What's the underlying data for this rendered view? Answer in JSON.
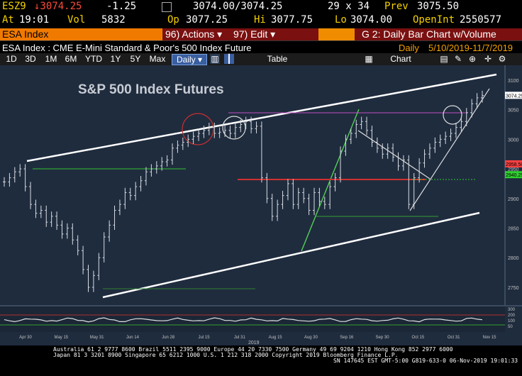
{
  "quote_bar": {
    "ticker": "ESZ9",
    "last": "↓3074.25",
    "change": "-1.25",
    "bid_ask": "3074.00/3074.25",
    "size": "29 x 34",
    "prev_label": "Prev",
    "prev": "3075.50",
    "at_label": "At",
    "time": "19:01",
    "vol_label": "Vol",
    "vol": "5832",
    "op_label": "Op",
    "open": "3077.25",
    "hi_label": "Hi",
    "high": "3077.75",
    "lo_label": "Lo",
    "low": "3074.00",
    "openint_label": "OpenInt",
    "openint": "2550577"
  },
  "menu_bar": {
    "security": "ESA Index",
    "actions_num": "96)",
    "actions": "Actions ▾",
    "edit_num": "97)",
    "edit": "Edit ▾",
    "chart_name": "G 2: Daily Bar Chart w/Volume"
  },
  "info_bar": {
    "description": "ESA Index : CME E-Mini Standard & Poor's 500 Index Future",
    "period": "Daily",
    "range": "5/10/2019-11/7/2019"
  },
  "toolbar": {
    "periods": [
      "1D",
      "3D",
      "1M",
      "6M",
      "YTD",
      "1Y",
      "5Y",
      "Max"
    ],
    "frequency": "Daily ▾",
    "table": "Table",
    "chart_content": "Chart Content"
  },
  "chart_data": {
    "type": "bar",
    "title": "S&P 500 Index Futures",
    "x_ticks": [
      "Apr 30",
      "May 15",
      "May 31",
      "Jun 14",
      "Jun 28",
      "Jul 15",
      "Jul 31",
      "Aug 15",
      "Aug 30",
      "Sep 16",
      "Sep 30",
      "Oct 15",
      "Oct 31",
      "Nov 15"
    ],
    "year_label": "2019",
    "y_ticks": [
      2750,
      2800,
      2850,
      2900,
      2950,
      3000,
      3050,
      3100
    ],
    "ylim": [
      2720,
      3125
    ],
    "price_labels": [
      {
        "label": "3074.25",
        "value": 3074.25,
        "color": "#ffffff"
      },
      {
        "label": "2958.50",
        "value": 2958.5,
        "color": "#ff4040"
      },
      {
        "label": "2940.25",
        "value": 2940.25,
        "color": "#30d030"
      }
    ],
    "volume_ticks": [
      "300",
      "200",
      "100",
      "50"
    ],
    "closes": [
      2928,
      2935,
      2945,
      2950,
      2920,
      2890,
      2875,
      2880,
      2860,
      2870,
      2855,
      2840,
      2850,
      2830,
      2812,
      2780,
      2750,
      2770,
      2800,
      2835,
      2855,
      2880,
      2890,
      2910,
      2905,
      2920,
      2930,
      2945,
      2950,
      2955,
      2962,
      2965,
      2985,
      2990,
      2995,
      3000,
      3005,
      3010,
      3015,
      3020,
      3010,
      3012,
      3015,
      3010,
      3020,
      3025,
      3030,
      3018,
      3022,
      2935,
      2900,
      2870,
      2890,
      2905,
      2925,
      2890,
      2910,
      2900,
      2880,
      2910,
      2895,
      2890,
      2920,
      2935,
      2980,
      3000,
      3010,
      3025,
      3030,
      3015,
      2995,
      2985,
      2975,
      2985,
      2970,
      2955,
      2965,
      2890,
      2935,
      2960,
      2975,
      2985,
      2995,
      3000,
      3005,
      3010,
      3020,
      3030,
      3045,
      3060,
      3070,
      3074
    ]
  },
  "footer": {
    "line1": "Australia 61 2 9777 8600 Brazil 5511 2395 9000 Europe 44 20 7330 7500 Germany 49 69 9204 1210 Hong Kong 852 2977 6000",
    "line2": "Japan 81 3 3201 8900       Singapore 65 6212 1000      U.S. 1 212 318 2000        Copyright 2019 Bloomberg Finance L.P.",
    "line3": "SN 147645 EST  GMT-5:00 G819-633-0 06-Nov-2019 19:01:33"
  }
}
